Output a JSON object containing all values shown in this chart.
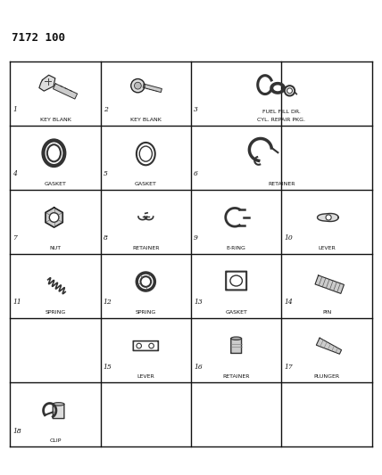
{
  "title": "7172 100",
  "bg_color": "#ffffff",
  "grid_color": "#111111",
  "text_color": "#111111",
  "figsize": [
    4.28,
    5.33
  ],
  "dpi": 100,
  "header_title": "7172 100",
  "grid_rows": 6,
  "grid_cols": 4,
  "items": [
    {
      "num": "1",
      "label": "KEY BLANK",
      "row": 0,
      "col": 0,
      "colspan": 1,
      "rowspan": 1
    },
    {
      "num": "2",
      "label": "KEY BLANK",
      "row": 0,
      "col": 1,
      "colspan": 1,
      "rowspan": 1
    },
    {
      "num": "3",
      "label": "FUEL FILL DR.\nCYL. REPAIR PKG.",
      "row": 0,
      "col": 2,
      "colspan": 2,
      "rowspan": 1
    },
    {
      "num": "4",
      "label": "GASKET",
      "row": 1,
      "col": 0,
      "colspan": 1,
      "rowspan": 1
    },
    {
      "num": "5",
      "label": "GASKET",
      "row": 1,
      "col": 1,
      "colspan": 1,
      "rowspan": 1
    },
    {
      "num": "6",
      "label": "RETAINER",
      "row": 1,
      "col": 2,
      "colspan": 2,
      "rowspan": 1
    },
    {
      "num": "7",
      "label": "NUT",
      "row": 2,
      "col": 0,
      "colspan": 1,
      "rowspan": 1
    },
    {
      "num": "8",
      "label": "RETAINER",
      "row": 2,
      "col": 1,
      "colspan": 1,
      "rowspan": 1
    },
    {
      "num": "9",
      "label": "E-RING",
      "row": 2,
      "col": 2,
      "colspan": 1,
      "rowspan": 1
    },
    {
      "num": "10",
      "label": "LEVER",
      "row": 2,
      "col": 3,
      "colspan": 1,
      "rowspan": 1
    },
    {
      "num": "11",
      "label": "SPRING",
      "row": 3,
      "col": 0,
      "colspan": 1,
      "rowspan": 1
    },
    {
      "num": "12",
      "label": "SPRING",
      "row": 3,
      "col": 1,
      "colspan": 1,
      "rowspan": 1
    },
    {
      "num": "13",
      "label": "GASKET",
      "row": 3,
      "col": 2,
      "colspan": 1,
      "rowspan": 1
    },
    {
      "num": "14",
      "label": "PIN",
      "row": 3,
      "col": 3,
      "colspan": 1,
      "rowspan": 1
    },
    {
      "num": "15",
      "label": "LEVER",
      "row": 4,
      "col": 1,
      "colspan": 1,
      "rowspan": 1
    },
    {
      "num": "16",
      "label": "RETAINER",
      "row": 4,
      "col": 2,
      "colspan": 1,
      "rowspan": 1
    },
    {
      "num": "17",
      "label": "PLUNGER",
      "row": 4,
      "col": 3,
      "colspan": 1,
      "rowspan": 1
    },
    {
      "num": "18",
      "label": "CLIP",
      "row": 5,
      "col": 0,
      "colspan": 1,
      "rowspan": 1
    }
  ]
}
